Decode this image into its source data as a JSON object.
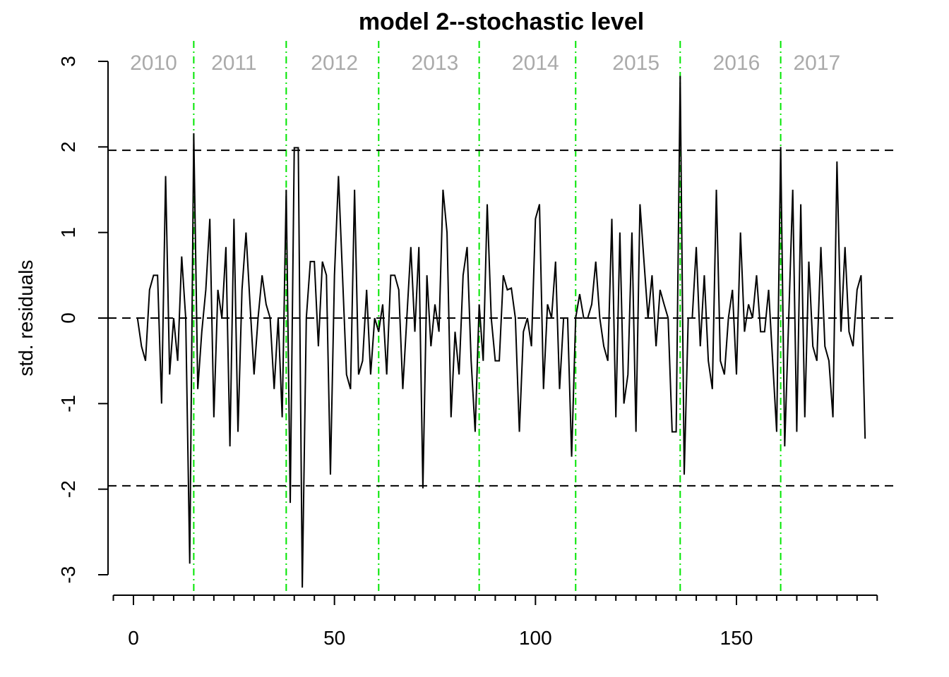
{
  "chart_data": {
    "type": "line",
    "title": "model 2--stochastic level",
    "xlabel": "",
    "ylabel": "std. residuals",
    "xlim": [
      -5,
      190
    ],
    "ylim": [
      -3.3,
      3.2
    ],
    "x_ticks": [
      0,
      50,
      100,
      150
    ],
    "x_minor_step": 5,
    "y_ticks": [
      -3,
      -2,
      -1,
      0,
      1,
      2,
      3
    ],
    "grid": false,
    "line_color": "#000000",
    "reference_lines": [
      {
        "name": "upper-bound",
        "y": 1.96,
        "style": "dashed",
        "color": "#000000"
      },
      {
        "name": "zero",
        "y": 0,
        "style": "dashed",
        "color": "#000000"
      },
      {
        "name": "lower-bound",
        "y": -1.96,
        "style": "dashed",
        "color": "#000000"
      }
    ],
    "year_separator_color": "#00e600",
    "year_separators": [
      15,
      38,
      61,
      86,
      110,
      136,
      161
    ],
    "year_labels": [
      {
        "text": "2010",
        "x": 5
      },
      {
        "text": "2011",
        "x": 25
      },
      {
        "text": "2012",
        "x": 50
      },
      {
        "text": "2013",
        "x": 75
      },
      {
        "text": "2014",
        "x": 100
      },
      {
        "text": "2015",
        "x": 125
      },
      {
        "text": "2016",
        "x": 150
      },
      {
        "text": "2017",
        "x": 170
      }
    ],
    "series": [
      {
        "values": [
          0,
          -0.33,
          -0.5,
          0.33,
          0.5,
          0.5,
          -1.0,
          1.66,
          -0.66,
          0,
          -0.5,
          0.72,
          0,
          -2.87,
          2.16,
          -0.83,
          -0.16,
          0.33,
          1.16,
          -1.16,
          0.33,
          0,
          0.83,
          -1.5,
          1.16,
          -1.33,
          0.33,
          1.0,
          0.16,
          -0.66,
          0,
          0.5,
          0.16,
          0,
          -0.83,
          0,
          -1.16,
          1.5,
          -2.16,
          1.99,
          1.99,
          -3.15,
          0,
          0.66,
          0.66,
          -0.33,
          0.66,
          0.5,
          -1.83,
          0.5,
          1.66,
          0.5,
          -0.66,
          -0.83,
          1.5,
          -0.66,
          -0.5,
          0.33,
          -0.66,
          0,
          -0.16,
          0.16,
          -0.66,
          0.5,
          0.5,
          0.33,
          -0.83,
          0,
          0.83,
          -0.16,
          0.83,
          -1.99,
          0.5,
          -0.33,
          0.16,
          -0.16,
          1.5,
          1.0,
          -1.16,
          -0.16,
          -0.66,
          0.5,
          0.83,
          -0.5,
          -1.33,
          0.16,
          -0.5,
          1.33,
          0,
          -0.5,
          -0.5,
          0.5,
          0.33,
          0.35,
          0,
          -1.33,
          -0.16,
          0,
          -0.33,
          1.16,
          1.33,
          -0.83,
          0.16,
          0,
          0.66,
          -0.83,
          0,
          0,
          -1.62,
          0,
          0.28,
          0,
          0,
          0.16,
          0.66,
          0,
          -0.33,
          -0.5,
          1.16,
          -1.16,
          1.0,
          -1.0,
          -0.66,
          1.0,
          -1.33,
          1.33,
          0.66,
          0,
          0.5,
          -0.33,
          0.33,
          0.16,
          0,
          -1.33,
          -1.33,
          2.83,
          -1.83,
          0,
          0,
          0.83,
          -0.33,
          0.5,
          -0.5,
          -0.83,
          1.5,
          -0.5,
          -0.66,
          0,
          0.33,
          -0.66,
          1.0,
          -0.16,
          0.16,
          0,
          0.5,
          -0.16,
          -0.16,
          0.33,
          -0.5,
          -1.33,
          2.0,
          -1.5,
          0,
          1.5,
          -1.33,
          1.33,
          -1.16,
          0.66,
          -0.33,
          -0.5,
          0.83,
          -0.33,
          -0.5,
          -1.16,
          1.83,
          -0.16,
          0.83,
          -0.16,
          -0.33,
          0.33,
          0.5,
          -1.41
        ]
      }
    ]
  }
}
